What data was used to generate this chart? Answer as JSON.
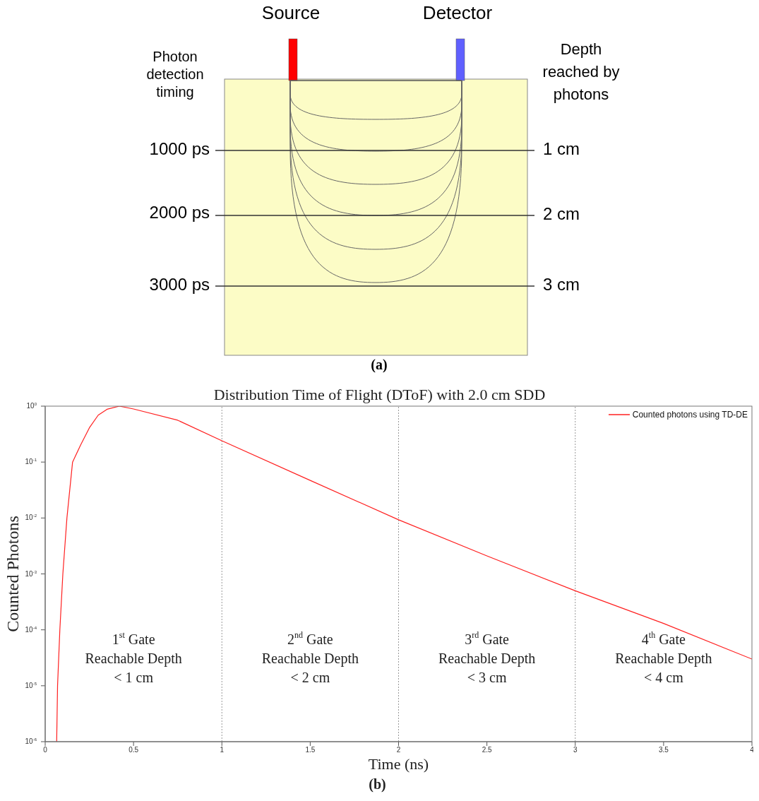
{
  "chart_data": [
    {
      "type": "other",
      "annotations": [
        "Source",
        "Detector",
        "Photon detection timing",
        "1000 ps",
        "2000 ps",
        "3000 ps",
        "Depth reached by photons",
        "1 cm",
        "2 cm",
        "3 cm",
        "(a)"
      ]
    },
    {
      "type": "line",
      "title": "Distribution Time of Flight (DToF) with 2.0 cm SDD",
      "xlabel": "Time (ns)",
      "ylabel": "Counted Photons",
      "series": [
        {
          "name": "Counted photons using TD-DE",
          "color": "#ff2020",
          "x": [
            0.065,
            0.07,
            0.083,
            0.1,
            0.123,
            0.155,
            0.2,
            0.25,
            0.3,
            0.35,
            0.42,
            0.5,
            0.75,
            1,
            1.5,
            2,
            2.5,
            3,
            3.5,
            4
          ],
          "values": [
            1e-06,
            1e-05,
            0.0001,
            0.001,
            0.01,
            0.1,
            0.2,
            0.41,
            0.69,
            0.88,
            1,
            0.89,
            0.56,
            0.24,
            0.047,
            0.0093,
            0.0021,
            0.0005,
            0.00013,
            3e-05
          ]
        }
      ],
      "xlim": [
        0,
        4
      ],
      "xticks": [
        0,
        0.5,
        1,
        1.5,
        2,
        2.5,
        3,
        3.5,
        4
      ],
      "ylim": [
        1e-06,
        1
      ],
      "yticks": [
        {
          "value": 1e-06,
          "label": "10$^{-6}$"
        },
        {
          "value": 1e-05,
          "label": "10$^{-5}$"
        },
        {
          "value": 0.0001,
          "label": "10$^{-4}$"
        },
        {
          "value": 0.001,
          "label": "10$^{-3}$"
        },
        {
          "value": 0.01,
          "label": "10$^{-2}$"
        },
        {
          "value": 0.1,
          "label": "10$^{-1}$"
        },
        {
          "value": 1,
          "label": "10$^{0}$"
        }
      ],
      "log": "y",
      "legend": "top right",
      "marker": "none",
      "line_style": "solid",
      "ref_lines": [
        {
          "axis": "x",
          "value": 1,
          "color": "#999999",
          "line_style": "dotted"
        },
        {
          "axis": "x",
          "value": 2,
          "color": "#999999",
          "line_style": "dotted"
        },
        {
          "axis": "x",
          "value": 3,
          "color": "#999999",
          "line_style": "dotted"
        }
      ],
      "annotations": [
        "1$^{st}$ Gate\nReachable Depth\n< 1 cm",
        "2$^{nd}$ Gate\nReachable Depth\n< 2 cm",
        "3$^{rd}$ Gate\nReachable Depth\n< 3 cm",
        "4$^{th}$ Gate\nReachable Depth\n< 4 cm",
        "(b)"
      ]
    }
  ]
}
